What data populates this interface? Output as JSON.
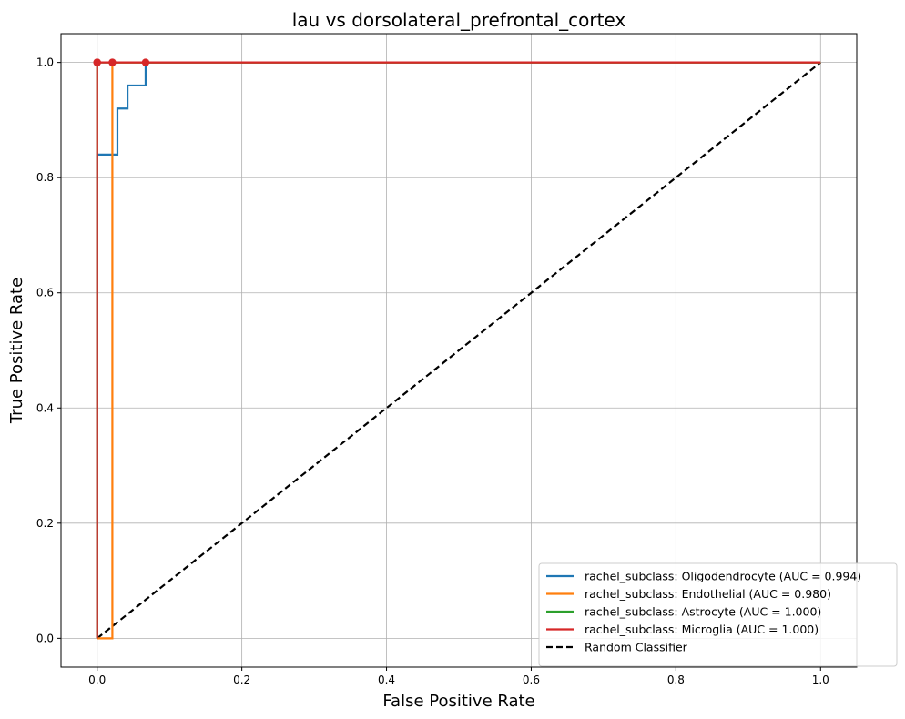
{
  "chart_data": {
    "type": "line",
    "title": "lau vs dorsolateral_prefrontal_cortex",
    "xlabel": "False Positive Rate",
    "ylabel": "True Positive Rate",
    "xlim": [
      -0.05,
      1.05
    ],
    "ylim": [
      -0.05,
      1.05
    ],
    "xticks": [
      0.0,
      0.2,
      0.4,
      0.6,
      0.8,
      1.0
    ],
    "yticks": [
      0.0,
      0.2,
      0.4,
      0.6,
      0.8,
      1.0
    ],
    "xtick_labels": [
      "0.0",
      "0.2",
      "0.4",
      "0.6",
      "0.8",
      "1.0"
    ],
    "ytick_labels": [
      "0.0",
      "0.2",
      "0.4",
      "0.6",
      "0.8",
      "1.0"
    ],
    "grid": true,
    "legend_position": "lower-right",
    "series": [
      {
        "name": "rachel_subclass: Oligodendrocyte (AUC = 0.994)",
        "color": "#1f77b4",
        "x": [
          0.0,
          0.0,
          0.028,
          0.028,
          0.042,
          0.042,
          0.067,
          0.067,
          1.0
        ],
        "y": [
          0.0,
          0.84,
          0.84,
          0.92,
          0.92,
          0.96,
          0.96,
          1.0,
          1.0
        ],
        "marker": {
          "x": 0.067,
          "y": 1.0
        }
      },
      {
        "name": "rachel_subclass: Endothelial (AUC = 0.980)",
        "color": "#ff7f0e",
        "x": [
          0.0,
          0.021,
          0.021,
          1.0
        ],
        "y": [
          0.0,
          0.0,
          1.0,
          1.0
        ],
        "marker": {
          "x": 0.021,
          "y": 1.0
        }
      },
      {
        "name": "rachel_subclass: Astrocyte (AUC = 1.000)",
        "color": "#2ca02c",
        "x": [
          0.0,
          0.0,
          1.0
        ],
        "y": [
          0.0,
          1.0,
          1.0
        ],
        "marker": {
          "x": 0.0,
          "y": 1.0
        }
      },
      {
        "name": "rachel_subclass: Microglia (AUC = 1.000)",
        "color": "#d62728",
        "x": [
          0.0,
          0.0,
          1.0
        ],
        "y": [
          0.0,
          1.0,
          1.0
        ],
        "marker": {
          "x": 0.0,
          "y": 1.0
        }
      },
      {
        "name": "Random Classifier",
        "color": "#000000",
        "dashed": true,
        "x": [
          0.0,
          1.0
        ],
        "y": [
          0.0,
          1.0
        ]
      }
    ]
  }
}
